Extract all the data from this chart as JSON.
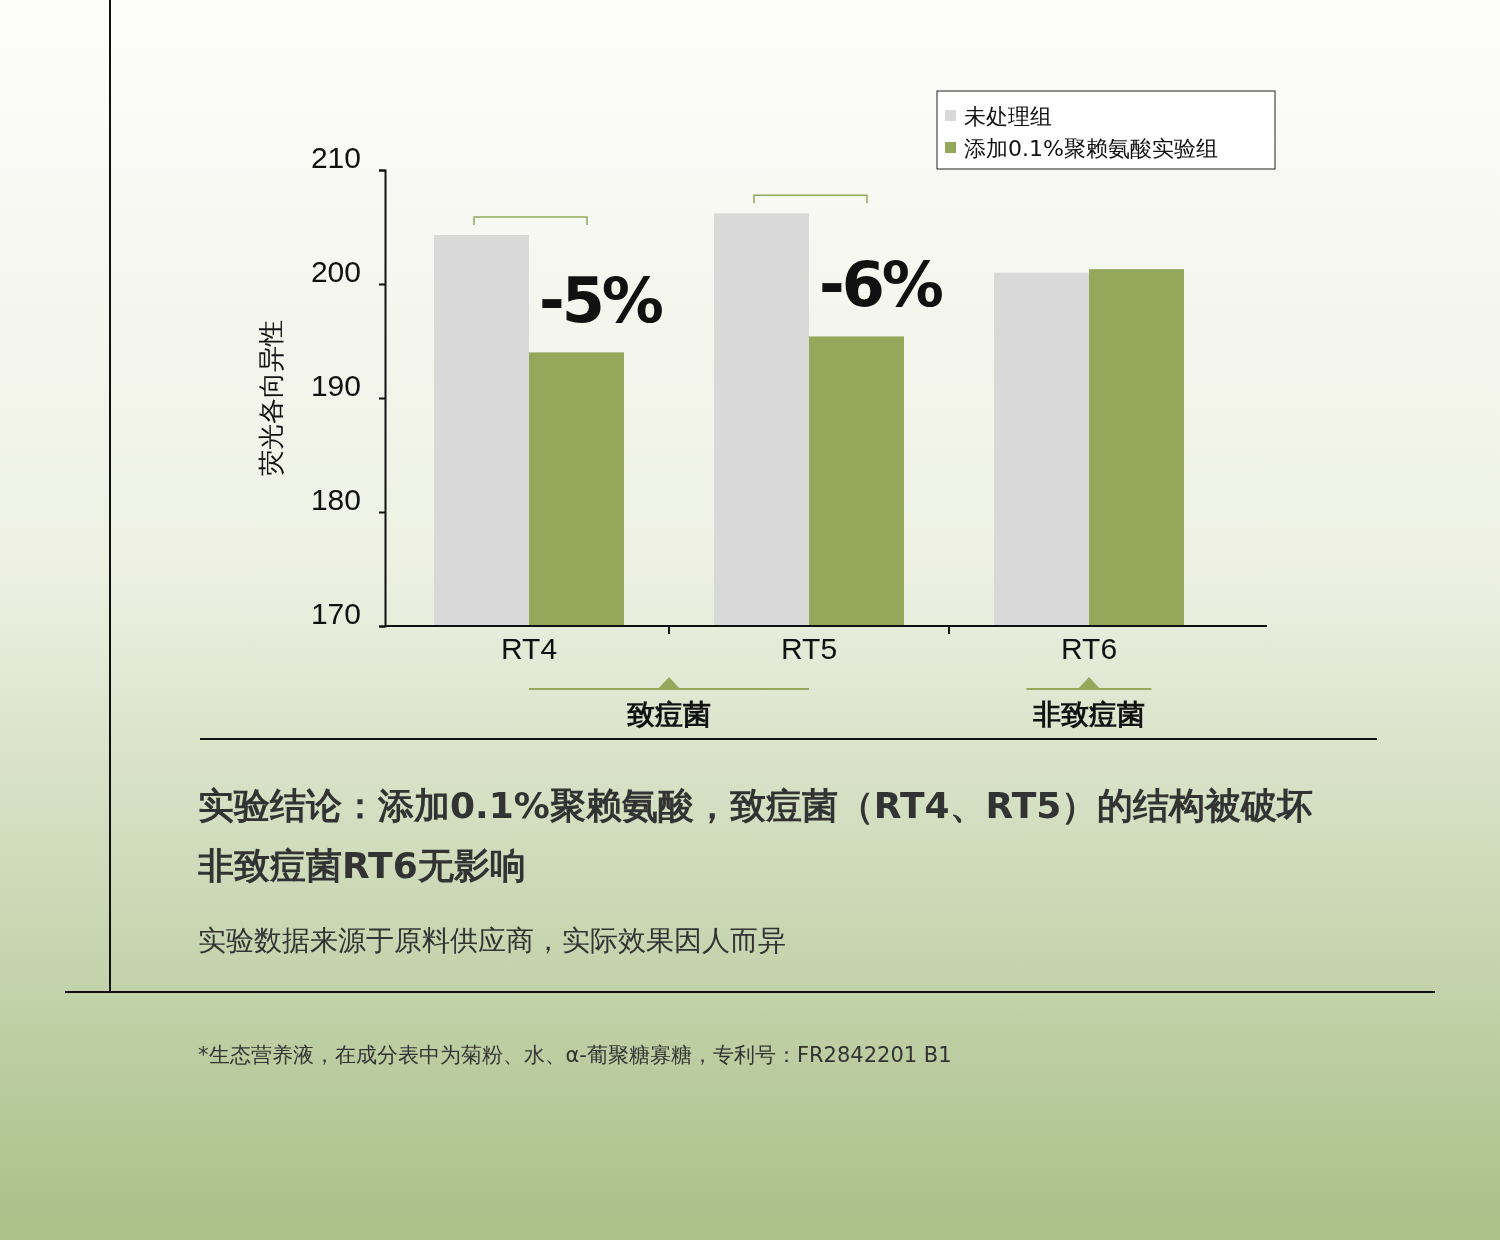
{
  "chart_data": {
    "type": "bar",
    "ylabel": "荧光各向异性",
    "categories": [
      "RT4",
      "RT5",
      "RT6"
    ],
    "series": [
      {
        "name": "未处理组",
        "color": "#d9d9d9",
        "values": [
          204.3,
          206.2,
          201
        ]
      },
      {
        "name": "添加0.1%聚赖氨酸实验组",
        "color": "#93a85a",
        "values": [
          194,
          195.4,
          201.3
        ]
      }
    ],
    "ylim": [
      170,
      210
    ],
    "yticks": [
      170,
      180,
      190,
      200,
      210
    ],
    "grid": false,
    "legend": "top right",
    "annotations": [
      "-5%",
      "-6%",
      "致痘菌",
      "非致痘菌",
      "实验结论：添加0.1%聚赖氨酸，致痘菌（RT4、RT5）的结构被破坏",
      "非致痘菌RT6无影响",
      "实验数据来源于原料供应商，实际效果因人而异",
      "*生态营养液，在成分表中为菊粉、水、α-葡聚糖寡糖，专利号：FR2842201 B1"
    ]
  }
}
